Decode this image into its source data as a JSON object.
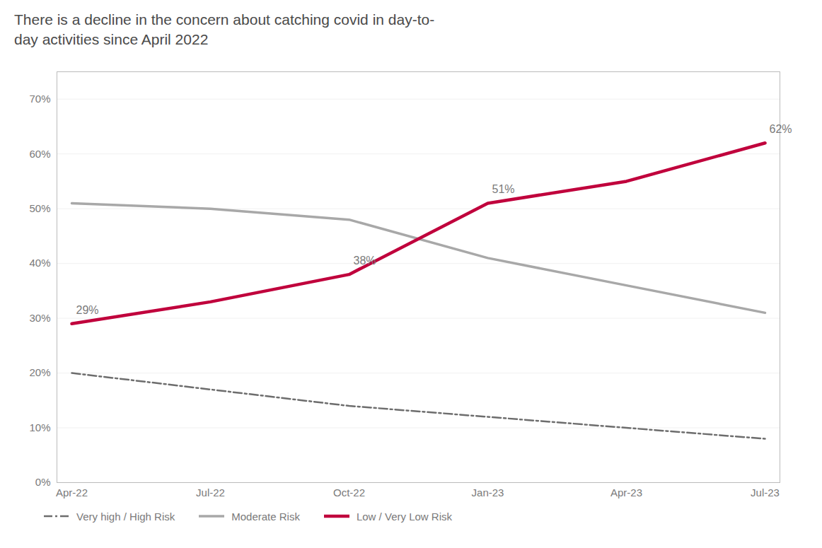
{
  "chart_data": {
    "type": "line",
    "title": "There is a decline in the concern about catching covid in day-to-\nday activities since April 2022",
    "categories": [
      "Apr-22",
      "Jul-22",
      "Oct-22",
      "Jan-23",
      "Apr-23",
      "Jul-23"
    ],
    "series": [
      {
        "name": "Very high / High Risk",
        "color": "#6d6d6d",
        "line_style": "dashdot",
        "values": [
          20,
          17,
          14,
          12,
          10,
          8
        ]
      },
      {
        "name": "Moderate Risk",
        "color": "#a8a8a8",
        "line_style": "solid",
        "values": [
          51,
          50,
          48,
          41,
          36,
          31
        ]
      },
      {
        "name": "Low / Very Low Risk",
        "color": "#c0003c",
        "line_style": "solid",
        "values": [
          29,
          33,
          38,
          51,
          55,
          62
        ]
      }
    ],
    "annotations": [
      {
        "text": "29%",
        "x": "Apr-22",
        "y": 29
      },
      {
        "text": "38%",
        "x": "Oct-22",
        "y": 38
      },
      {
        "text": "51%",
        "x": "Jan-23",
        "y": 51
      },
      {
        "text": "62%",
        "x": "Jul-23",
        "y": 62
      }
    ],
    "ylim": [
      0,
      75
    ],
    "yticks": [
      {
        "value": 0,
        "label": "0%"
      },
      {
        "value": 10,
        "label": "10%"
      },
      {
        "value": 20,
        "label": "20%"
      },
      {
        "value": 30,
        "label": "30%"
      },
      {
        "value": 40,
        "label": "40%"
      },
      {
        "value": 50,
        "label": "50%"
      },
      {
        "value": 60,
        "label": "60%"
      },
      {
        "value": 70,
        "label": "70%"
      }
    ],
    "grid": true,
    "legend": "lower left"
  }
}
